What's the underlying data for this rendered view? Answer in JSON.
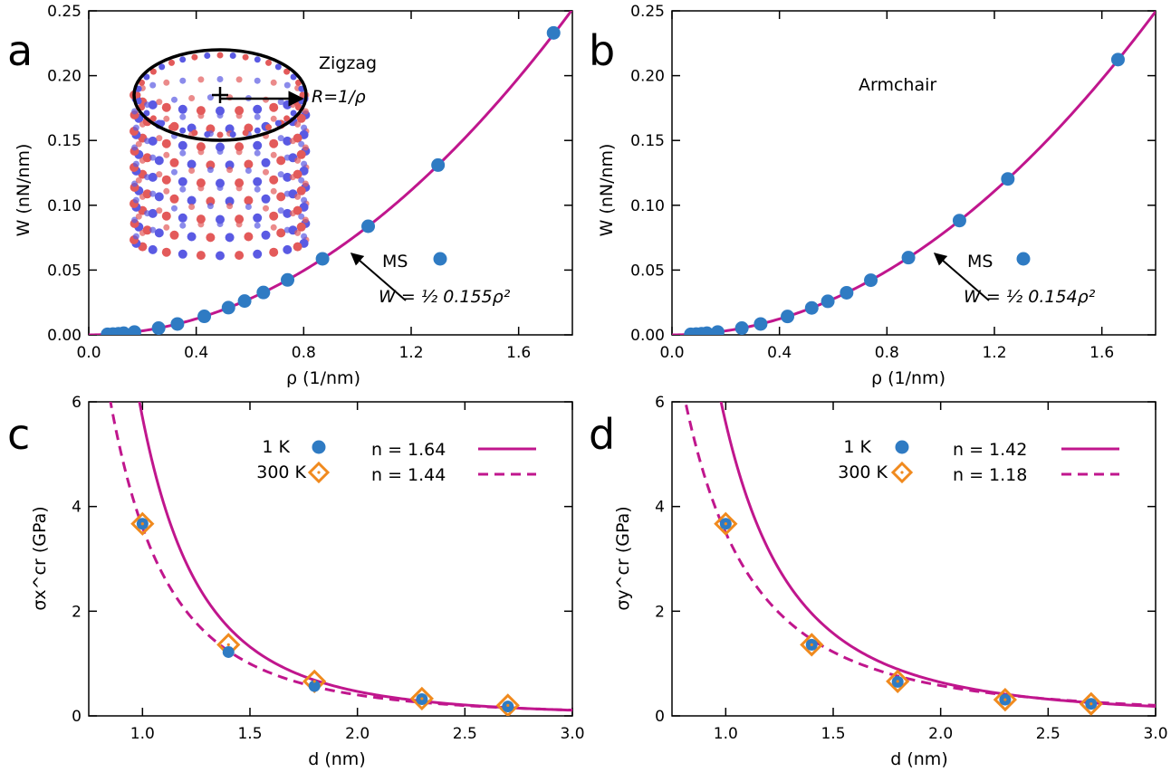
{
  "colors": {
    "fit": "#c0168d",
    "ms": "#2f7bc3",
    "t300": "#f08a1e",
    "axis": "#000000"
  },
  "chart_data": [
    {
      "id": "a",
      "type": "scatter",
      "panel_label": "a",
      "annotation": "Zigzag",
      "inset_label": "R=1/ρ",
      "xlabel": "ρ (1/nm)",
      "ylabel": "W (nN/nm)",
      "xlim": [
        0.0,
        1.8
      ],
      "ylim": [
        0.0,
        0.25
      ],
      "xticks": [
        "0.0",
        "0.4",
        "0.8",
        "1.2",
        "1.6"
      ],
      "yticks": [
        "0.00",
        "0.05",
        "0.10",
        "0.15",
        "0.20",
        "0.25"
      ],
      "legend": [
        "MS",
        "W = ½ 0.155ρ²"
      ],
      "legend_placement": "lower-right",
      "fit": {
        "formula": "W = 0.5 * 0.155 * rho^2",
        "coef": 0.155
      },
      "series": [
        {
          "name": "MS",
          "x": [
            0.07,
            0.09,
            0.11,
            0.13,
            0.17,
            0.26,
            0.33,
            0.43,
            0.52,
            0.58,
            0.65,
            0.74,
            0.87,
            1.04,
            1.3,
            1.73
          ],
          "y": [
            0.0004,
            0.0006,
            0.0009,
            0.0013,
            0.0022,
            0.0052,
            0.0084,
            0.0143,
            0.021,
            0.0261,
            0.0327,
            0.0424,
            0.0587,
            0.0838,
            0.131,
            0.233
          ]
        }
      ]
    },
    {
      "id": "b",
      "type": "scatter",
      "panel_label": "b",
      "annotation": "Armchair",
      "xlabel": "ρ (1/nm)",
      "ylabel": "W (nN/nm)",
      "xlim": [
        0.0,
        1.8
      ],
      "ylim": [
        0.0,
        0.25
      ],
      "xticks": [
        "0.0",
        "0.4",
        "0.8",
        "1.2",
        "1.6"
      ],
      "yticks": [
        "0.00",
        "0.05",
        "0.10",
        "0.15",
        "0.20",
        "0.25"
      ],
      "legend": [
        "MS",
        "W = ½ 0.154ρ²"
      ],
      "legend_placement": "lower-right",
      "fit": {
        "formula": "W = 0.5 * 0.154 * rho^2",
        "coef": 0.154
      },
      "series": [
        {
          "name": "MS",
          "x": [
            0.07,
            0.09,
            0.11,
            0.13,
            0.17,
            0.26,
            0.33,
            0.43,
            0.52,
            0.58,
            0.65,
            0.74,
            0.88,
            1.07,
            1.25,
            1.66
          ],
          "y": [
            0.0004,
            0.0006,
            0.0009,
            0.0013,
            0.0022,
            0.0052,
            0.0084,
            0.0142,
            0.0208,
            0.0259,
            0.0325,
            0.0422,
            0.0596,
            0.0882,
            0.1203,
            0.2124
          ]
        }
      ]
    },
    {
      "id": "c",
      "type": "scatter",
      "panel_label": "c",
      "xlabel": "d (nm)",
      "ylabel": "σx^cr (GPa)",
      "xlim": [
        0.75,
        3.0
      ],
      "ylim": [
        0,
        6
      ],
      "xticks": [
        "1.0",
        "1.5",
        "2.0",
        "2.5",
        "3.0"
      ],
      "yticks": [
        "0",
        "2",
        "4",
        "6"
      ],
      "legend": [
        "1 K",
        "300 K",
        "n = 1.64",
        "n = 1.44"
      ],
      "legend_placement": "top-right",
      "fits": [
        {
          "label": "n = 1.64",
          "style": "solid",
          "n": 1.64,
          "a": 5.7
        },
        {
          "label": "n = 1.44",
          "style": "dashed",
          "n": 1.44,
          "a": 3.6
        }
      ],
      "series": [
        {
          "name": "1 K",
          "x": [
            1.0,
            1.4,
            1.8,
            2.3,
            2.7
          ],
          "y": [
            3.67,
            1.22,
            0.57,
            0.32,
            0.18
          ]
        },
        {
          "name": "300 K",
          "x": [
            1.0,
            1.4,
            1.8,
            2.3,
            2.7
          ],
          "y": [
            3.67,
            1.36,
            0.66,
            0.33,
            0.2
          ]
        }
      ]
    },
    {
      "id": "d",
      "type": "scatter",
      "panel_label": "d",
      "xlabel": "d (nm)",
      "ylabel": "σy^cr (GPa)",
      "xlim": [
        0.75,
        3.0
      ],
      "ylim": [
        0,
        6
      ],
      "xticks": [
        "1.0",
        "1.5",
        "2.0",
        "2.5",
        "3.0"
      ],
      "yticks": [
        "0",
        "2",
        "4",
        "6"
      ],
      "legend": [
        "1 K",
        "300 K",
        "n = 1.42",
        "n = 1.18"
      ],
      "legend_placement": "top-right",
      "fits": [
        {
          "label": "n = 1.42",
          "style": "solid",
          "n": 1.42,
          "a": 5.6
        },
        {
          "label": "n = 1.18",
          "style": "dashed",
          "n": 1.18,
          "a": 3.5
        }
      ],
      "series": [
        {
          "name": "1 K",
          "x": [
            1.0,
            1.4,
            1.8,
            2.3,
            2.7
          ],
          "y": [
            3.67,
            1.36,
            0.65,
            0.31,
            0.23
          ]
        },
        {
          "name": "300 K",
          "x": [
            1.0,
            1.4,
            1.8,
            2.3,
            2.7
          ],
          "y": [
            3.67,
            1.36,
            0.66,
            0.31,
            0.23
          ]
        }
      ]
    }
  ]
}
